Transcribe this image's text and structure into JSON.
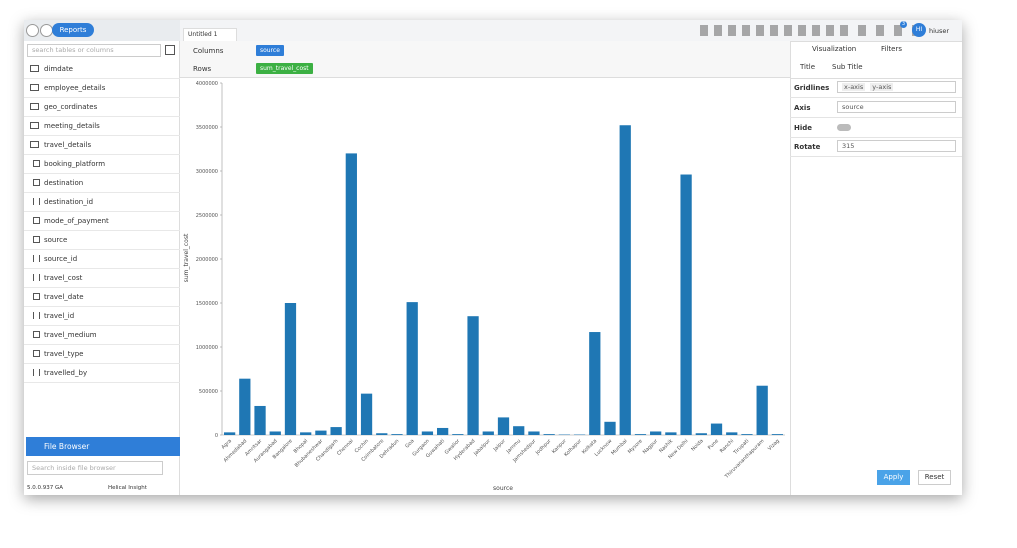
{
  "nav": {
    "title": "Reports"
  },
  "tab": {
    "title": "Untitled 1"
  },
  "user": {
    "initials": "HI",
    "name": "hiuser",
    "notifications": "3"
  },
  "sidebar": {
    "search": "search tables or columns",
    "tables": [
      "dimdate",
      "employee_details",
      "geo_cordinates",
      "meeting_details",
      "travel_details"
    ],
    "columns": [
      {
        "icon": "text",
        "name": "booking_platform"
      },
      {
        "icon": "text",
        "name": "destination"
      },
      {
        "icon": "number",
        "name": "destination_id"
      },
      {
        "icon": "text",
        "name": "mode_of_payment"
      },
      {
        "icon": "text",
        "name": "source"
      },
      {
        "icon": "number",
        "name": "source_id"
      },
      {
        "icon": "number",
        "name": "travel_cost"
      },
      {
        "icon": "date",
        "name": "travel_date"
      },
      {
        "icon": "number",
        "name": "travel_id"
      },
      {
        "icon": "text",
        "name": "travel_medium"
      },
      {
        "icon": "text",
        "name": "travel_type"
      },
      {
        "icon": "number",
        "name": "travelled_by"
      }
    ],
    "file_browser": "File Browser",
    "file_search": "Search inside file browser",
    "version": "5.0.0.937 GA",
    "brand": "Helical Insight"
  },
  "shelves": {
    "columns_label": "Columns",
    "columns_field": "source",
    "rows_label": "Rows",
    "rows_field": "sum_travel_cost"
  },
  "panel": {
    "tabs": [
      "Visualization",
      "Filters"
    ],
    "subtabs": [
      "Title",
      "Sub Title"
    ],
    "gridlines_label": "Gridlines",
    "gridlines": [
      "x-axis",
      "y-axis"
    ],
    "axis_label": "Axis",
    "axis": "source",
    "hide_label": "Hide",
    "rotate_label": "Rotate",
    "rotate": "315",
    "apply": "Apply",
    "reset": "Reset"
  },
  "chart_data": {
    "type": "bar",
    "x_label": "source",
    "y_label": "sum_travel_cost",
    "color": "#1f77b4",
    "categories": [
      "Agra",
      "Ahmedabad",
      "Amritsar",
      "Aurangabad",
      "Bangalore",
      "Bhopal",
      "Bhubaneshwar",
      "Chandigarh",
      "Chennai",
      "Cochin",
      "Coimbatore",
      "Dehradun",
      "Goa",
      "Gurgaon",
      "Guwahati",
      "Gwalior",
      "Hyderabad",
      "Jabalpur",
      "Jaipur",
      "Jammu",
      "Jamshedpur",
      "Jodhpur",
      "Kanpur",
      "Kolhapur",
      "Kolkata",
      "Lucknow",
      "Mumbai",
      "Mysore",
      "Nagpur",
      "Nashik",
      "New Delhi",
      "Noida",
      "Pune",
      "Ranchi",
      "Tirupati",
      "Thiruvananthapuram",
      "Vizag"
    ],
    "values": [
      30000,
      640000,
      330000,
      40000,
      1500000,
      30000,
      50000,
      90000,
      3200000,
      470000,
      20000,
      10000,
      1510000,
      40000,
      80000,
      10000,
      1350000,
      40000,
      200000,
      100000,
      40000,
      10000,
      5000,
      5000,
      1170000,
      150000,
      3520000,
      10000,
      40000,
      30000,
      2960000,
      20000,
      130000,
      30000,
      10000,
      560000,
      10000
    ],
    "ylim": [
      0,
      4000000
    ],
    "yticks": [
      0,
      500000,
      1000000,
      1500000,
      2000000,
      2500000,
      3000000,
      3500000,
      4000000
    ]
  }
}
